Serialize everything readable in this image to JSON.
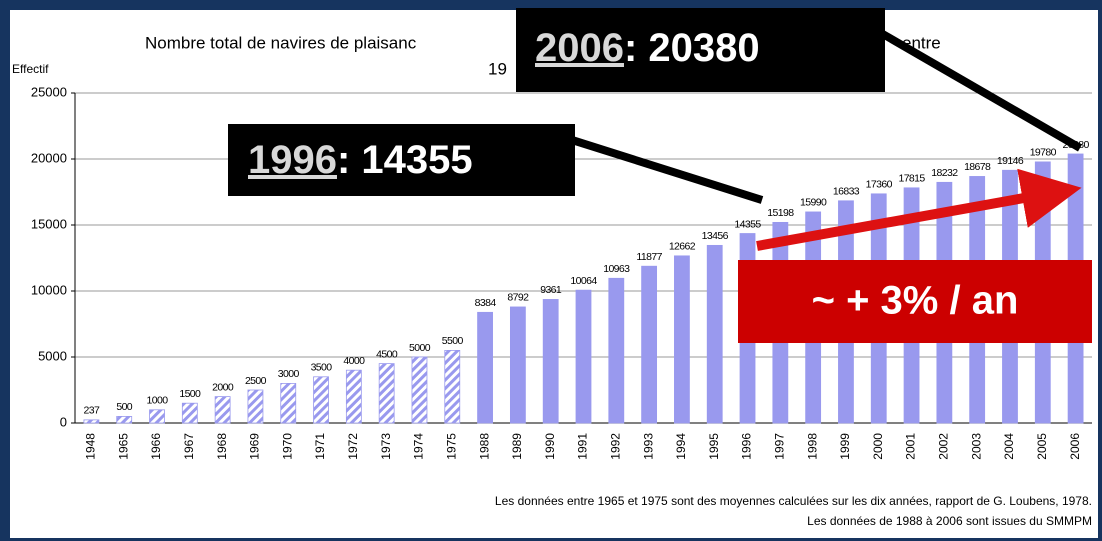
{
  "chart_data": {
    "type": "bar",
    "title": [
      "Nombre total de navires de plaisanc",
      "entre",
      "19"
    ],
    "y_label": "Effectif",
    "categories": [
      "1948",
      "1965",
      "1966",
      "1967",
      "1968",
      "1969",
      "1970",
      "1971",
      "1972",
      "1973",
      "1974",
      "1975",
      "1988",
      "1989",
      "1990",
      "1991",
      "1992",
      "1993",
      "1994",
      "1995",
      "1996",
      "1997",
      "1998",
      "1999",
      "2000",
      "2001",
      "2002",
      "2003",
      "2004",
      "2005",
      "2006"
    ],
    "values": [
      237,
      500,
      1000,
      1500,
      2000,
      2500,
      3000,
      3500,
      4000,
      4500,
      5000,
      5500,
      8384,
      8792,
      9361,
      10064,
      10963,
      11877,
      12662,
      13456,
      14355,
      15198,
      15990,
      16833,
      17360,
      17815,
      18232,
      18678,
      19146,
      19780,
      20380
    ],
    "hatched": [
      true,
      true,
      true,
      true,
      true,
      true,
      true,
      true,
      true,
      true,
      true,
      true,
      false,
      false,
      false,
      false,
      false,
      false,
      false,
      false,
      false,
      false,
      false,
      false,
      false,
      false,
      false,
      false,
      false,
      false,
      false
    ],
    "color": "#9999ee",
    "ylim": [
      0,
      25000
    ],
    "yticks": [
      0,
      5000,
      10000,
      15000,
      20000,
      25000
    ],
    "grid": true,
    "footnotes": [
      "Les données entre 1965 et 1975 sont des moyennes calculées sur les dix années, rapport de G. Loubens, 1978.",
      "Les données de 1988 à 2006 sont issues du SMMPM"
    ],
    "annotations": [
      {
        "year": "1996",
        "text": ": 14355"
      },
      {
        "year": "2006",
        "text": ": 20380"
      },
      {
        "text": "~ + 3% / an"
      }
    ]
  }
}
